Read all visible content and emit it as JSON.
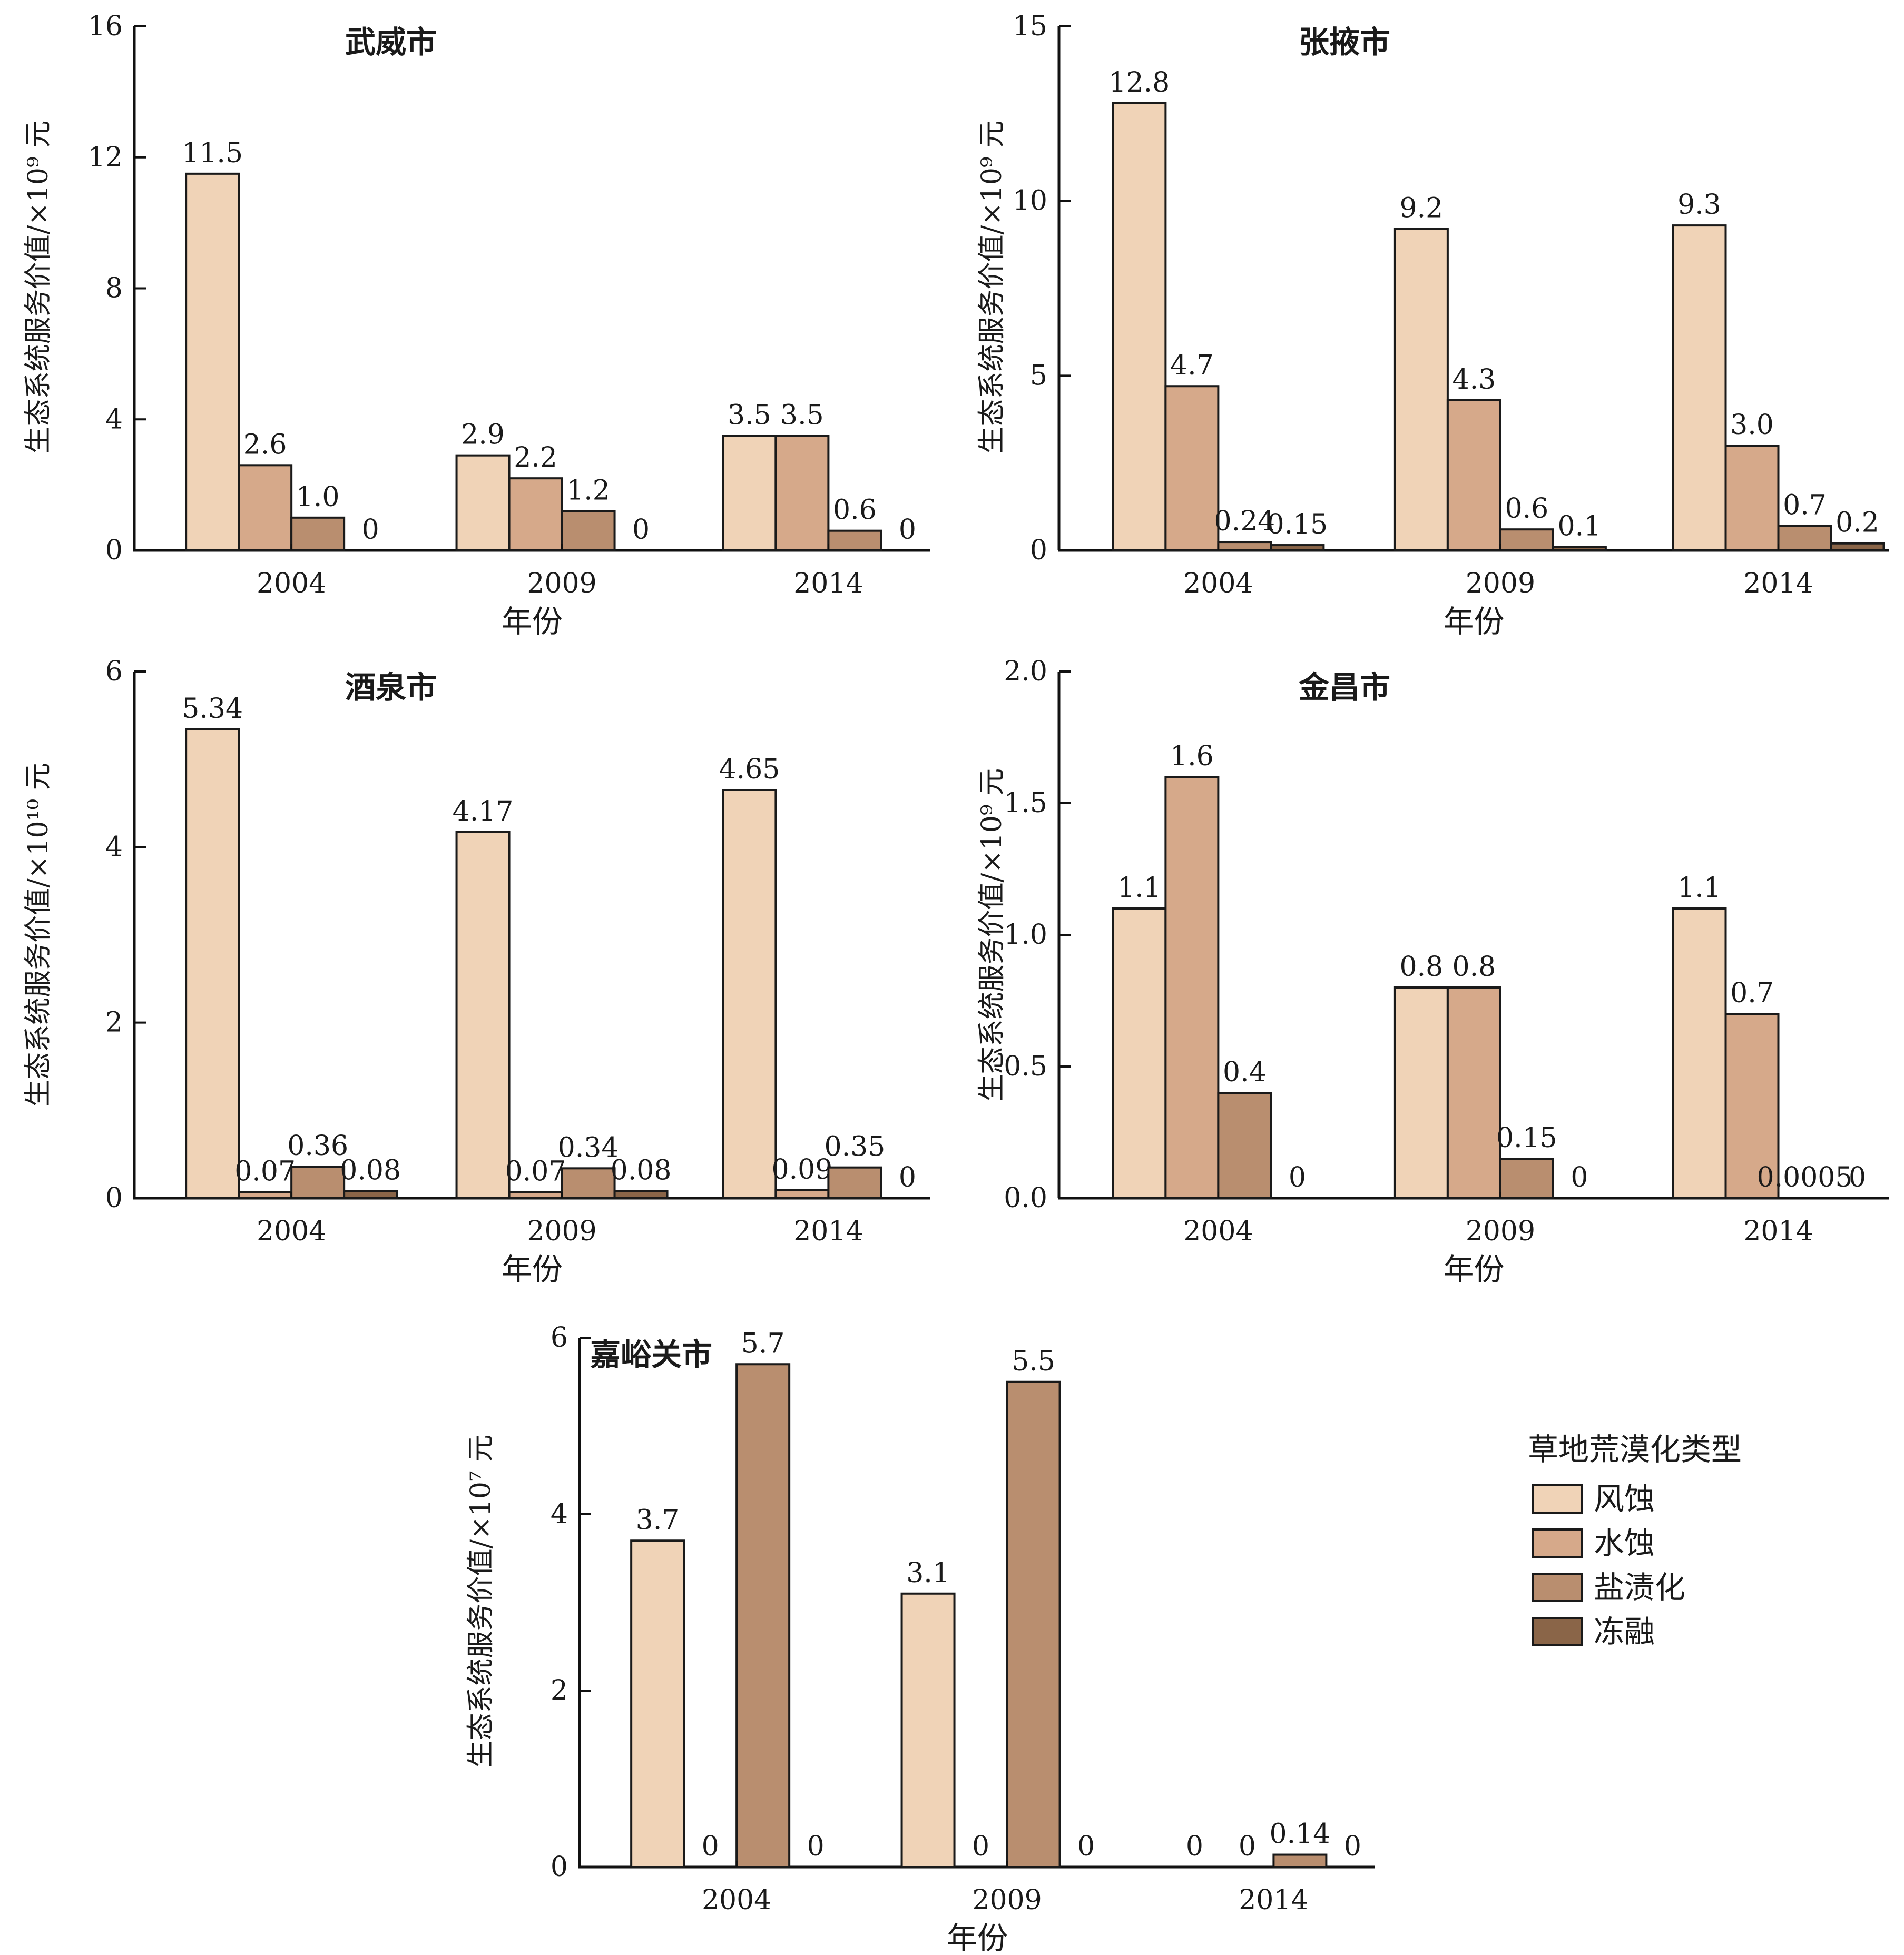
{
  "legend": {
    "title": "草地荒漠化类型",
    "items": [
      "风蚀",
      "水蚀",
      "盐渍化",
      "冻融"
    ],
    "colors": [
      "#f0d3b7",
      "#d6a98a",
      "#b98e6f",
      "#8a6548"
    ]
  },
  "chart_data": [
    {
      "type": "bar",
      "title": "武威市",
      "categories": [
        "2004",
        "2009",
        "2014"
      ],
      "xlabel": "年份",
      "ylabel": "生态系统服务价值/×10⁹ 元",
      "ylim": [
        0,
        16
      ],
      "yticks": [
        "0",
        "4",
        "8",
        "12",
        "16"
      ],
      "series": [
        {
          "name": "风蚀",
          "values": [
            11.5,
            2.9,
            3.5
          ],
          "labels": [
            "11.5",
            "2.9",
            "3.5"
          ]
        },
        {
          "name": "水蚀",
          "values": [
            2.6,
            2.2,
            3.5
          ],
          "labels": [
            "2.6",
            "2.2",
            "3.5"
          ]
        },
        {
          "name": "盐渍化",
          "values": [
            1.0,
            1.2,
            0.6
          ],
          "labels": [
            "1.0",
            "1.2",
            "0.6"
          ]
        },
        {
          "name": "冻融",
          "values": [
            0,
            0,
            0
          ],
          "labels": [
            "0",
            "0",
            "0"
          ]
        }
      ]
    },
    {
      "type": "bar",
      "title": "张掖市",
      "categories": [
        "2004",
        "2009",
        "2014"
      ],
      "xlabel": "年份",
      "ylabel": "生态系统服务价值/×10⁹ 元",
      "ylim": [
        0,
        15
      ],
      "yticks": [
        "0",
        "5",
        "10",
        "15"
      ],
      "series": [
        {
          "name": "风蚀",
          "values": [
            12.8,
            9.2,
            9.3
          ],
          "labels": [
            "12.8",
            "9.2",
            "9.3"
          ]
        },
        {
          "name": "水蚀",
          "values": [
            4.7,
            4.3,
            3.0
          ],
          "labels": [
            "4.7",
            "4.3",
            "3.0"
          ]
        },
        {
          "name": "盐渍化",
          "values": [
            0.24,
            0.6,
            0.7
          ],
          "labels": [
            "0.24",
            "0.6",
            "0.7"
          ]
        },
        {
          "name": "冻融",
          "values": [
            0.15,
            0.1,
            0.2
          ],
          "labels": [
            "0.15",
            "0.1",
            "0.2"
          ]
        }
      ]
    },
    {
      "type": "bar",
      "title": "酒泉市",
      "categories": [
        "2004",
        "2009",
        "2014"
      ],
      "xlabel": "年份",
      "ylabel": "生态系统服务价值/×10¹⁰ 元",
      "ylim": [
        0,
        6
      ],
      "yticks": [
        "0",
        "2",
        "4",
        "6"
      ],
      "series": [
        {
          "name": "风蚀",
          "values": [
            5.34,
            4.17,
            4.65
          ],
          "labels": [
            "5.34",
            "4.17",
            "4.65"
          ]
        },
        {
          "name": "水蚀",
          "values": [
            0.07,
            0.07,
            0.09
          ],
          "labels": [
            "0.07",
            "0.07",
            "0.09"
          ]
        },
        {
          "name": "盐渍化",
          "values": [
            0.36,
            0.34,
            0.35
          ],
          "labels": [
            "0.36",
            "0.34",
            "0.35"
          ]
        },
        {
          "name": "冻融",
          "values": [
            0.08,
            0.08,
            0
          ],
          "labels": [
            "0.08",
            "0.08",
            "0"
          ]
        }
      ]
    },
    {
      "type": "bar",
      "title": "金昌市",
      "categories": [
        "2004",
        "2009",
        "2014"
      ],
      "xlabel": "年份",
      "ylabel": "生态系统服务价值/×10⁹ 元",
      "ylim": [
        0,
        2.0
      ],
      "yticks": [
        "0.0",
        "0.5",
        "1.0",
        "1.5",
        "2.0"
      ],
      "series": [
        {
          "name": "风蚀",
          "values": [
            1.1,
            0.8,
            1.1
          ],
          "labels": [
            "1.1",
            "0.8",
            "1.1"
          ]
        },
        {
          "name": "水蚀",
          "values": [
            1.6,
            0.8,
            0.7
          ],
          "labels": [
            "1.6",
            "0.8",
            "0.7"
          ]
        },
        {
          "name": "盐渍化",
          "values": [
            0.4,
            0.15,
            0.0005
          ],
          "labels": [
            "0.4",
            "0.15",
            "0.0005"
          ]
        },
        {
          "name": "冻融",
          "values": [
            0,
            0,
            0
          ],
          "labels": [
            "0",
            "0",
            "0"
          ]
        }
      ]
    },
    {
      "type": "bar",
      "title": "嘉峪关市",
      "categories": [
        "2004",
        "2009",
        "2014"
      ],
      "xlabel": "年份",
      "ylabel": "生态系统服务价值/×10⁷ 元",
      "ylim": [
        0,
        6
      ],
      "yticks": [
        "0",
        "2",
        "4",
        "6"
      ],
      "series": [
        {
          "name": "风蚀",
          "values": [
            3.7,
            3.1,
            0
          ],
          "labels": [
            "3.7",
            "3.1",
            "0"
          ]
        },
        {
          "name": "水蚀",
          "values": [
            0,
            0,
            0
          ],
          "labels": [
            "0",
            "0",
            "0"
          ]
        },
        {
          "name": "盐渍化",
          "values": [
            5.7,
            5.5,
            0.14
          ],
          "labels": [
            "5.7",
            "5.5",
            "0.14"
          ]
        },
        {
          "name": "冻融",
          "values": [
            0,
            0,
            0
          ],
          "labels": [
            "0",
            "0",
            "0"
          ]
        }
      ]
    }
  ]
}
